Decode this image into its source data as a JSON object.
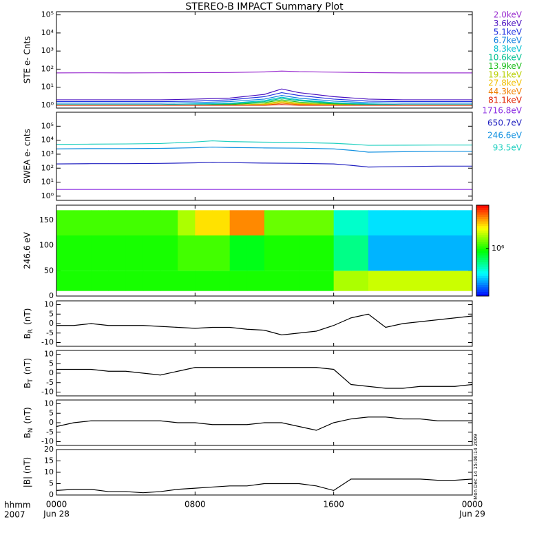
{
  "title": "STEREO-B IMPACT Summary Plot",
  "x_axis": {
    "xlim": [
      0,
      24
    ],
    "xticks": [
      {
        "value": 0,
        "label": "0000"
      },
      {
        "value": 8,
        "label": "0800"
      },
      {
        "value": 16,
        "label": "1600"
      },
      {
        "value": 24,
        "label": "0000"
      }
    ],
    "dates": [
      {
        "value": 0,
        "label": "Jun 28"
      },
      {
        "value": 24,
        "label": "Jun 29"
      }
    ],
    "labels": [
      "hhmm",
      "2007"
    ]
  },
  "timestamp": "Mon Dec 14 15:06:14 2009",
  "chart_data": [
    {
      "type": "line",
      "ylabel": "STE e- Cnts",
      "log_y": true,
      "ylim": [
        0.7,
        150000
      ],
      "yticks": [
        {
          "value": 1,
          "label": "10⁰"
        },
        {
          "value": 10,
          "label": "10¹"
        },
        {
          "value": 100,
          "label": "10²"
        },
        {
          "value": 1000,
          "label": "10³"
        },
        {
          "value": 10000,
          "label": "10⁴"
        },
        {
          "value": 100000,
          "label": "10⁵"
        }
      ],
      "x": [
        0,
        2,
        4,
        6,
        8,
        10,
        12,
        13,
        14,
        16,
        18,
        20,
        22,
        24
      ],
      "series": [
        {
          "name": "2.0keV",
          "color": "#9b30d0",
          "values": [
            62,
            63,
            62,
            63,
            64,
            65,
            70,
            78,
            72,
            68,
            64,
            62,
            62,
            62
          ]
        },
        {
          "name": "3.6keV",
          "color": "#4a10c0",
          "values": [
            2,
            2,
            2,
            2,
            2.2,
            2.5,
            4,
            8,
            5,
            3,
            2.2,
            2,
            2,
            2
          ]
        },
        {
          "name": "5.1keV",
          "color": "#2030e0",
          "values": [
            1.6,
            1.6,
            1.6,
            1.6,
            1.7,
            2,
            3,
            5,
            3.5,
            2.2,
            1.7,
            1.6,
            1.6,
            1.6
          ]
        },
        {
          "name": "6.7keV",
          "color": "#1080e0",
          "values": [
            1.3,
            1.3,
            1.3,
            1.3,
            1.4,
            1.6,
            2.2,
            3.5,
            2.5,
            1.7,
            1.4,
            1.3,
            1.3,
            1.3
          ]
        },
        {
          "name": "8.3keV",
          "color": "#00c0d0",
          "values": [
            1.1,
            1.1,
            1.1,
            1.1,
            1.2,
            1.3,
            1.8,
            2.8,
            2,
            1.4,
            1.2,
            1.1,
            1.1,
            1.1
          ]
        },
        {
          "name": "10.6keV",
          "color": "#00c090",
          "values": [
            1,
            1,
            1,
            1,
            1.05,
            1.2,
            1.6,
            2.4,
            1.8,
            1.3,
            1.1,
            1,
            1,
            1
          ]
        },
        {
          "name": "13.9keV",
          "color": "#20c020",
          "values": [
            1,
            1,
            1,
            1,
            1,
            1.1,
            1.4,
            2,
            1.5,
            1.2,
            1,
            1,
            1,
            1
          ]
        },
        {
          "name": "19.1keV",
          "color": "#b8d000",
          "values": [
            1,
            1,
            1,
            1,
            1,
            1,
            1.2,
            1.7,
            1.3,
            1.1,
            1,
            1,
            1,
            1
          ]
        },
        {
          "name": "27.8keV",
          "color": "#f0c000",
          "values": [
            1,
            1,
            1,
            1,
            1,
            1,
            1.1,
            1.5,
            1.2,
            1,
            1,
            1,
            1,
            1
          ]
        },
        {
          "name": "44.3keV",
          "color": "#f08000",
          "values": [
            1,
            1,
            1,
            1,
            1,
            1,
            1,
            1.3,
            1.1,
            1,
            1,
            1,
            1,
            1
          ]
        },
        {
          "name": "81.1keV",
          "color": "#e02000",
          "values": [
            1,
            1,
            1,
            1,
            1,
            1,
            1,
            1.1,
            1,
            1,
            1,
            1,
            1,
            1
          ]
        }
      ]
    },
    {
      "type": "line",
      "ylabel": "SWEA e- cnts",
      "log_y": true,
      "ylim": [
        0.5,
        1000000
      ],
      "yticks": [
        {
          "value": 1,
          "label": "10⁰"
        },
        {
          "value": 10,
          "label": "10¹"
        },
        {
          "value": 100,
          "label": "10²"
        },
        {
          "value": 1000,
          "label": "10³"
        },
        {
          "value": 10000,
          "label": "10⁴"
        },
        {
          "value": 100000,
          "label": "10⁵"
        }
      ],
      "x": [
        0,
        2,
        4,
        6,
        8,
        9,
        10,
        12,
        14,
        16,
        17,
        18,
        20,
        22,
        24
      ],
      "series": [
        {
          "name": "1716.8eV",
          "color": "#8a2be2",
          "values": [
            3,
            3,
            3,
            3,
            3,
            3,
            3,
            3,
            3,
            3,
            3,
            3,
            3,
            3,
            3
          ]
        },
        {
          "name": "650.7eV",
          "color": "#2020c0",
          "values": [
            200,
            210,
            210,
            220,
            240,
            260,
            250,
            230,
            220,
            200,
            160,
            120,
            130,
            140,
            140
          ]
        },
        {
          "name": "246.6eV",
          "color": "#1090e0",
          "values": [
            2400,
            2500,
            2500,
            2600,
            2900,
            3200,
            3000,
            2800,
            2700,
            2400,
            1900,
            1400,
            1500,
            1600,
            1600
          ]
        },
        {
          "name": "93.5eV",
          "color": "#20d0c0",
          "values": [
            5000,
            5200,
            5400,
            5800,
            7500,
            9000,
            8000,
            7200,
            6800,
            6000,
            5200,
            4300,
            4400,
            4500,
            4500
          ]
        }
      ]
    },
    {
      "type": "heatmap",
      "ylabel": "246.6 eV",
      "ylim": [
        0,
        180
      ],
      "yticks": [
        0,
        50,
        100,
        150
      ],
      "xbins": [
        0,
        1,
        2,
        3,
        4,
        5,
        6,
        7,
        8,
        9,
        10,
        11,
        12,
        13,
        14,
        15,
        16,
        17,
        18,
        19,
        20,
        21,
        22,
        23,
        24
      ],
      "ybins": [
        10,
        50,
        120,
        170
      ],
      "zlim": [
        300000,
        3000000
      ],
      "zticks": [
        {
          "value": 1000000,
          "label": "10⁶"
        }
      ],
      "z": [
        [
          1000000,
          1000000,
          1000000,
          1000000,
          1000000,
          1000000,
          1000000,
          1000000,
          1000000,
          1000000,
          1000000,
          1000000,
          1000000,
          1000000,
          1000000,
          1000000,
          1400000,
          1400000,
          1500000,
          1500000,
          1500000,
          1500000,
          1500000,
          1500000
        ],
        [
          1000000,
          1000000,
          1000000,
          1000000,
          1000000,
          1000000,
          1000000,
          1100000,
          1100000,
          1100000,
          900000,
          900000,
          1000000,
          1000000,
          1000000,
          1000000,
          700000,
          700000,
          450000,
          450000,
          450000,
          450000,
          450000,
          450000
        ],
        [
          1100000,
          1100000,
          1100000,
          1100000,
          1100000,
          1100000,
          1100000,
          1400000,
          1800000,
          1800000,
          2200000,
          2200000,
          1200000,
          1200000,
          1200000,
          1200000,
          600000,
          600000,
          500000,
          500000,
          500000,
          500000,
          500000,
          500000
        ]
      ]
    },
    {
      "type": "line",
      "ylabel_main": "B",
      "ylabel_sub": "R",
      "ylabel_unit": "(nT)",
      "ylim": [
        -12,
        12
      ],
      "yticks": [
        -10,
        -5,
        0,
        5,
        10
      ],
      "x": [
        0,
        1,
        2,
        3,
        4,
        5,
        6,
        7,
        8,
        9,
        10,
        11,
        12,
        13,
        14,
        15,
        16,
        17,
        18,
        19,
        20,
        21,
        22,
        23,
        24
      ],
      "series": [
        {
          "color": "#000000",
          "values": [
            -1,
            -1,
            0,
            -1,
            -1,
            -1,
            -1.5,
            -2,
            -2.5,
            -2,
            -2,
            -3,
            -3.5,
            -6,
            -5,
            -4,
            -1,
            3,
            5,
            -2,
            0,
            1,
            2,
            3,
            4
          ]
        }
      ]
    },
    {
      "type": "line",
      "ylabel_main": "B",
      "ylabel_sub": "T",
      "ylabel_unit": "(nT)",
      "ylim": [
        -12,
        12
      ],
      "yticks": [
        -10,
        -5,
        0,
        5,
        10
      ],
      "x": [
        0,
        1,
        2,
        3,
        4,
        5,
        6,
        7,
        8,
        9,
        10,
        11,
        12,
        13,
        14,
        15,
        16,
        17,
        18,
        19,
        20,
        21,
        22,
        23,
        24
      ],
      "series": [
        {
          "color": "#000000",
          "values": [
            2,
            2,
            2,
            1,
            1,
            0,
            -1,
            1,
            3,
            3,
            3,
            3,
            3,
            3,
            3,
            3,
            2,
            -6,
            -7,
            -8,
            -8,
            -7,
            -7,
            -7,
            -6
          ]
        }
      ]
    },
    {
      "type": "line",
      "ylabel_main": "B",
      "ylabel_sub": "N",
      "ylabel_unit": "(nT)",
      "ylim": [
        -12,
        12
      ],
      "yticks": [
        -10,
        -5,
        0,
        5,
        10
      ],
      "x": [
        0,
        1,
        2,
        3,
        4,
        5,
        6,
        7,
        8,
        9,
        10,
        11,
        12,
        13,
        14,
        15,
        16,
        17,
        18,
        19,
        20,
        21,
        22,
        23,
        24
      ],
      "series": [
        {
          "color": "#000000",
          "values": [
            -2,
            0,
            1,
            1,
            1,
            1,
            1,
            0,
            0,
            -1,
            -1,
            -1,
            0,
            0,
            -2,
            -4,
            0,
            2,
            3,
            3,
            2,
            2,
            1,
            1,
            1
          ]
        }
      ]
    },
    {
      "type": "line",
      "ylabel": "|B| (nT)",
      "ylim": [
        0,
        20
      ],
      "yticks": [
        0,
        5,
        10,
        15,
        20
      ],
      "x": [
        0,
        1,
        2,
        3,
        4,
        5,
        6,
        7,
        8,
        9,
        10,
        11,
        12,
        13,
        14,
        15,
        16,
        17,
        18,
        19,
        20,
        21,
        22,
        23,
        24
      ],
      "series": [
        {
          "color": "#000000",
          "values": [
            2,
            2.5,
            2.5,
            1.5,
            1.5,
            1,
            1.5,
            2.5,
            3,
            3.5,
            4,
            4,
            5,
            5,
            5,
            4,
            2,
            7,
            7,
            7,
            7,
            7,
            6.5,
            6.5,
            7
          ]
        }
      ]
    }
  ]
}
